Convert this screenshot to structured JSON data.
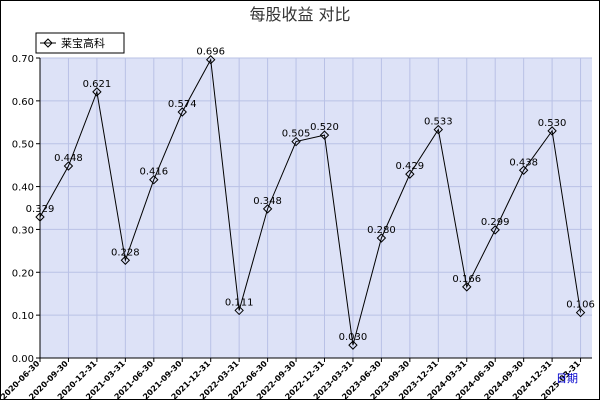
{
  "chart_data": {
    "type": "line",
    "title": "每股收益  对比",
    "xlabel": "日期",
    "ylabel": "",
    "ylim": [
      0,
      0.7
    ],
    "yticks": [
      "0.00",
      "0.10",
      "0.20",
      "0.30",
      "0.40",
      "0.50",
      "0.60",
      "0.70"
    ],
    "grid": true,
    "legend_position": "top-left",
    "categories": [
      "2020-06-30",
      "2020-09-30",
      "2020-12-31",
      "2021-03-31",
      "2021-06-30",
      "2021-09-30",
      "2021-12-31",
      "2022-03-31",
      "2022-06-30",
      "2022-09-30",
      "2022-12-31",
      "2023-03-31",
      "2023-06-30",
      "2023-09-30",
      "2023-12-31",
      "2024-03-31",
      "2024-06-30",
      "2024-09-30",
      "2024-12-31",
      "2025-03-31"
    ],
    "series": [
      {
        "name": "莱宝高科",
        "color": "#000000",
        "values": [
          0.329,
          0.448,
          0.621,
          0.228,
          0.416,
          0.574,
          0.696,
          0.111,
          0.348,
          0.505,
          0.52,
          0.03,
          0.28,
          0.429,
          0.533,
          0.166,
          0.299,
          0.438,
          0.53,
          0.106
        ],
        "labels": [
          "0.329",
          "0.448",
          "0.621",
          "0.228",
          "0.416",
          "0.574",
          "0.696",
          "0.111",
          "0.348",
          "0.505",
          "0.520",
          "0.030",
          "0.280",
          "0.429",
          "0.533",
          "0.166",
          "0.299",
          "0.438",
          "0.530",
          "0.106"
        ]
      }
    ],
    "colors": {
      "plot_background": "#dde2f7",
      "grid": "#b9c1e6",
      "axis": "#000000",
      "xlabel": "#0000cc"
    }
  }
}
